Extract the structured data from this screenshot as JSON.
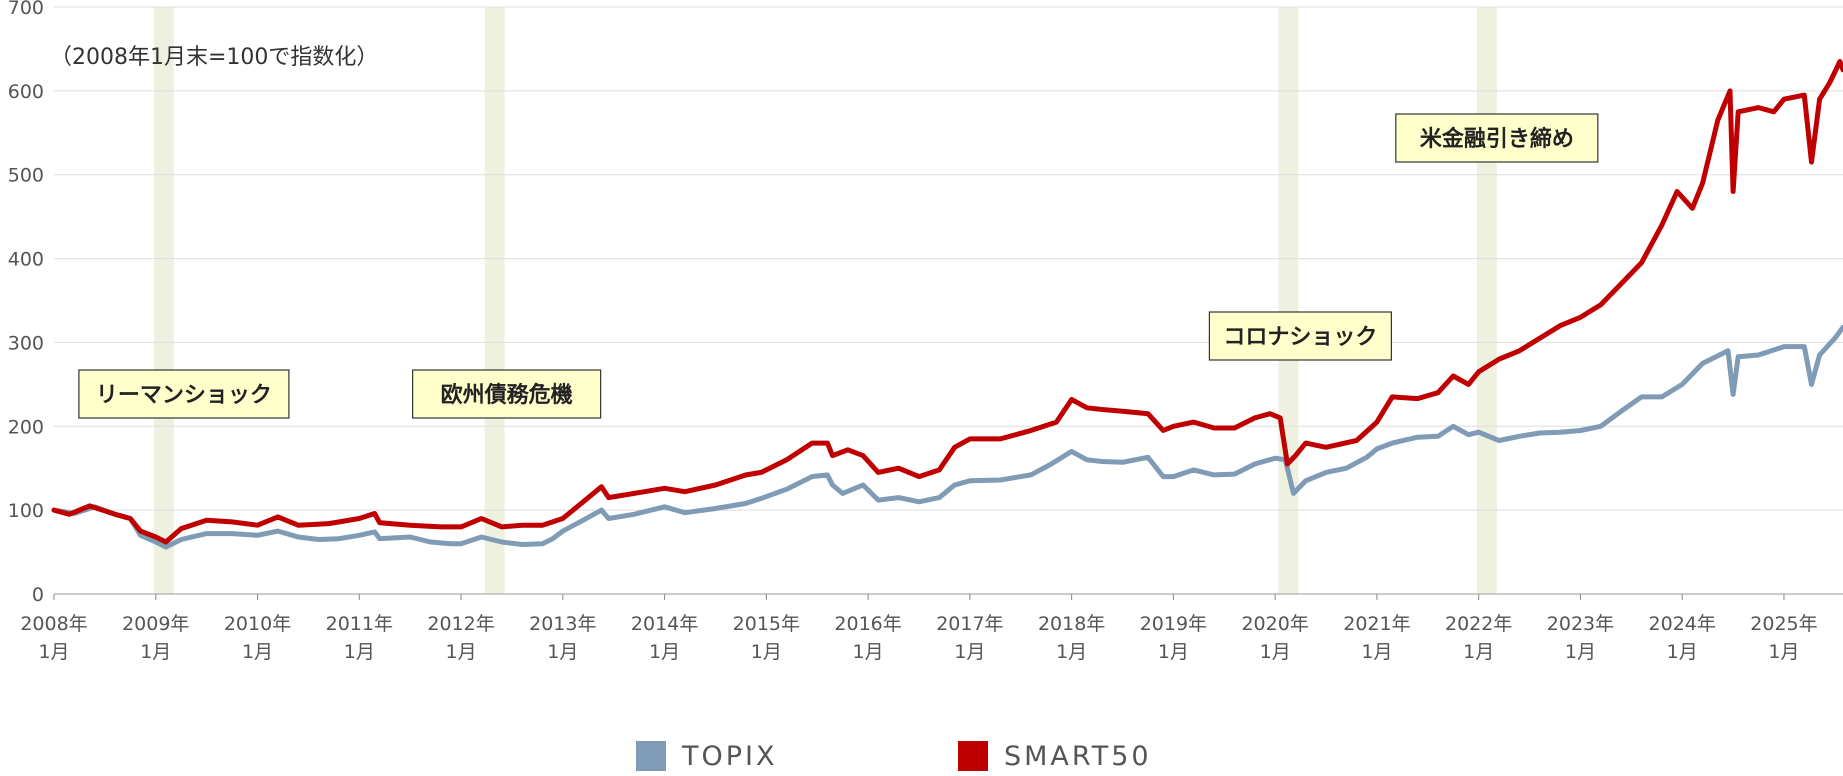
{
  "chart_data": {
    "type": "line",
    "note": "（2008年1月末=100で指数化）",
    "ylim": [
      0,
      700
    ],
    "yticks": [
      "0",
      "100",
      "200",
      "300",
      "400",
      "500",
      "600",
      "700"
    ],
    "x_range": [
      2008.0,
      2025.58
    ],
    "xticks": [
      {
        "year": "2008年",
        "month": "1月"
      },
      {
        "year": "2009年",
        "month": "1月"
      },
      {
        "year": "2010年",
        "month": "1月"
      },
      {
        "year": "2011年",
        "month": "1月"
      },
      {
        "year": "2012年",
        "month": "1月"
      },
      {
        "year": "2013年",
        "month": "1月"
      },
      {
        "year": "2014年",
        "month": "1月"
      },
      {
        "year": "2015年",
        "month": "1月"
      },
      {
        "year": "2016年",
        "month": "1月"
      },
      {
        "year": "2017年",
        "month": "1月"
      },
      {
        "year": "2018年",
        "month": "1月"
      },
      {
        "year": "2019年",
        "month": "1月"
      },
      {
        "year": "2020年",
        "month": "1月"
      },
      {
        "year": "2021年",
        "month": "1月"
      },
      {
        "year": "2022年",
        "month": "1月"
      },
      {
        "year": "2023年",
        "month": "1月"
      },
      {
        "year": "2024年",
        "month": "1月"
      },
      {
        "year": "2025年",
        "month": "1月"
      }
    ],
    "events": [
      {
        "label": "リーマンショック",
        "x": 2009.08
      },
      {
        "label": "欧州債務危機",
        "x": 2012.33
      },
      {
        "label": "コロナショック",
        "x": 2020.13
      },
      {
        "label": "米金融引き締め",
        "x": 2022.08
      }
    ],
    "series": [
      {
        "name": "TOPIX",
        "color": "#7f9bb5",
        "points": [
          [
            2008.0,
            100
          ],
          [
            2008.2,
            96
          ],
          [
            2008.4,
            104
          ],
          [
            2008.6,
            95
          ],
          [
            2008.75,
            90
          ],
          [
            2008.85,
            70
          ],
          [
            2009.0,
            62
          ],
          [
            2009.1,
            56
          ],
          [
            2009.25,
            65
          ],
          [
            2009.5,
            72
          ],
          [
            2009.75,
            72
          ],
          [
            2010.0,
            70
          ],
          [
            2010.2,
            75
          ],
          [
            2010.4,
            68
          ],
          [
            2010.6,
            65
          ],
          [
            2010.8,
            66
          ],
          [
            2011.0,
            70
          ],
          [
            2011.15,
            74
          ],
          [
            2011.2,
            66
          ],
          [
            2011.5,
            68
          ],
          [
            2011.7,
            62
          ],
          [
            2011.9,
            60
          ],
          [
            2012.0,
            60
          ],
          [
            2012.2,
            68
          ],
          [
            2012.4,
            62
          ],
          [
            2012.6,
            59
          ],
          [
            2012.8,
            60
          ],
          [
            2012.9,
            66
          ],
          [
            2013.0,
            75
          ],
          [
            2013.2,
            88
          ],
          [
            2013.38,
            100
          ],
          [
            2013.45,
            90
          ],
          [
            2013.7,
            95
          ],
          [
            2014.0,
            104
          ],
          [
            2014.2,
            97
          ],
          [
            2014.5,
            102
          ],
          [
            2014.8,
            108
          ],
          [
            2014.95,
            114
          ],
          [
            2015.2,
            125
          ],
          [
            2015.45,
            140
          ],
          [
            2015.6,
            142
          ],
          [
            2015.65,
            130
          ],
          [
            2015.75,
            120
          ],
          [
            2015.95,
            130
          ],
          [
            2016.1,
            112
          ],
          [
            2016.3,
            115
          ],
          [
            2016.5,
            110
          ],
          [
            2016.7,
            115
          ],
          [
            2016.85,
            130
          ],
          [
            2017.0,
            135
          ],
          [
            2017.3,
            136
          ],
          [
            2017.6,
            142
          ],
          [
            2017.8,
            155
          ],
          [
            2018.0,
            170
          ],
          [
            2018.15,
            160
          ],
          [
            2018.3,
            158
          ],
          [
            2018.5,
            157
          ],
          [
            2018.75,
            163
          ],
          [
            2018.9,
            140
          ],
          [
            2019.0,
            140
          ],
          [
            2019.2,
            148
          ],
          [
            2019.4,
            142
          ],
          [
            2019.6,
            143
          ],
          [
            2019.8,
            155
          ],
          [
            2020.0,
            162
          ],
          [
            2020.1,
            160
          ],
          [
            2020.18,
            120
          ],
          [
            2020.3,
            135
          ],
          [
            2020.5,
            145
          ],
          [
            2020.7,
            150
          ],
          [
            2020.9,
            163
          ],
          [
            2021.0,
            173
          ],
          [
            2021.15,
            180
          ],
          [
            2021.4,
            187
          ],
          [
            2021.6,
            188
          ],
          [
            2021.75,
            200
          ],
          [
            2021.9,
            190
          ],
          [
            2022.0,
            193
          ],
          [
            2022.2,
            183
          ],
          [
            2022.4,
            188
          ],
          [
            2022.6,
            192
          ],
          [
            2022.8,
            193
          ],
          [
            2023.0,
            195
          ],
          [
            2023.2,
            200
          ],
          [
            2023.4,
            218
          ],
          [
            2023.6,
            235
          ],
          [
            2023.8,
            235
          ],
          [
            2024.0,
            250
          ],
          [
            2024.2,
            275
          ],
          [
            2024.45,
            290
          ],
          [
            2024.5,
            238
          ],
          [
            2024.55,
            283
          ],
          [
            2024.75,
            285
          ],
          [
            2025.0,
            295
          ],
          [
            2025.2,
            295
          ],
          [
            2025.27,
            250
          ],
          [
            2025.35,
            285
          ],
          [
            2025.5,
            305
          ],
          [
            2025.58,
            318
          ]
        ]
      },
      {
        "name": "SMART50",
        "color": "#c00000",
        "points": [
          [
            2008.0,
            100
          ],
          [
            2008.15,
            95
          ],
          [
            2008.35,
            105
          ],
          [
            2008.6,
            95
          ],
          [
            2008.75,
            90
          ],
          [
            2008.85,
            75
          ],
          [
            2009.0,
            68
          ],
          [
            2009.1,
            62
          ],
          [
            2009.25,
            78
          ],
          [
            2009.5,
            88
          ],
          [
            2009.75,
            86
          ],
          [
            2010.0,
            82
          ],
          [
            2010.2,
            92
          ],
          [
            2010.4,
            82
          ],
          [
            2010.7,
            84
          ],
          [
            2011.0,
            90
          ],
          [
            2011.15,
            96
          ],
          [
            2011.2,
            85
          ],
          [
            2011.5,
            82
          ],
          [
            2011.8,
            80
          ],
          [
            2012.0,
            80
          ],
          [
            2012.2,
            90
          ],
          [
            2012.4,
            80
          ],
          [
            2012.6,
            82
          ],
          [
            2012.8,
            82
          ],
          [
            2013.0,
            90
          ],
          [
            2013.2,
            110
          ],
          [
            2013.38,
            128
          ],
          [
            2013.45,
            115
          ],
          [
            2013.7,
            120
          ],
          [
            2014.0,
            126
          ],
          [
            2014.2,
            122
          ],
          [
            2014.5,
            130
          ],
          [
            2014.8,
            142
          ],
          [
            2014.95,
            145
          ],
          [
            2015.2,
            160
          ],
          [
            2015.45,
            180
          ],
          [
            2015.6,
            180
          ],
          [
            2015.65,
            165
          ],
          [
            2015.8,
            172
          ],
          [
            2015.95,
            165
          ],
          [
            2016.1,
            145
          ],
          [
            2016.3,
            150
          ],
          [
            2016.5,
            140
          ],
          [
            2016.7,
            148
          ],
          [
            2016.85,
            175
          ],
          [
            2017.0,
            185
          ],
          [
            2017.3,
            185
          ],
          [
            2017.6,
            195
          ],
          [
            2017.85,
            205
          ],
          [
            2018.0,
            232
          ],
          [
            2018.15,
            222
          ],
          [
            2018.3,
            220
          ],
          [
            2018.5,
            218
          ],
          [
            2018.75,
            215
          ],
          [
            2018.9,
            195
          ],
          [
            2019.0,
            200
          ],
          [
            2019.2,
            205
          ],
          [
            2019.4,
            198
          ],
          [
            2019.6,
            198
          ],
          [
            2019.8,
            210
          ],
          [
            2019.95,
            215
          ],
          [
            2020.05,
            210
          ],
          [
            2020.12,
            155
          ],
          [
            2020.2,
            165
          ],
          [
            2020.3,
            180
          ],
          [
            2020.5,
            175
          ],
          [
            2020.8,
            183
          ],
          [
            2021.0,
            205
          ],
          [
            2021.15,
            235
          ],
          [
            2021.4,
            233
          ],
          [
            2021.6,
            240
          ],
          [
            2021.75,
            260
          ],
          [
            2021.9,
            250
          ],
          [
            2022.0,
            265
          ],
          [
            2022.2,
            280
          ],
          [
            2022.4,
            290
          ],
          [
            2022.6,
            305
          ],
          [
            2022.8,
            320
          ],
          [
            2023.0,
            330
          ],
          [
            2023.2,
            345
          ],
          [
            2023.4,
            370
          ],
          [
            2023.6,
            395
          ],
          [
            2023.8,
            440
          ],
          [
            2023.95,
            480
          ],
          [
            2024.1,
            460
          ],
          [
            2024.2,
            490
          ],
          [
            2024.35,
            565
          ],
          [
            2024.47,
            600
          ],
          [
            2024.5,
            480
          ],
          [
            2024.55,
            575
          ],
          [
            2024.75,
            580
          ],
          [
            2024.9,
            575
          ],
          [
            2025.0,
            590
          ],
          [
            2025.2,
            595
          ],
          [
            2025.27,
            515
          ],
          [
            2025.35,
            590
          ],
          [
            2025.45,
            610
          ],
          [
            2025.55,
            635
          ],
          [
            2025.58,
            625
          ]
        ]
      }
    ],
    "grid": true,
    "legend_position": "bottom"
  }
}
